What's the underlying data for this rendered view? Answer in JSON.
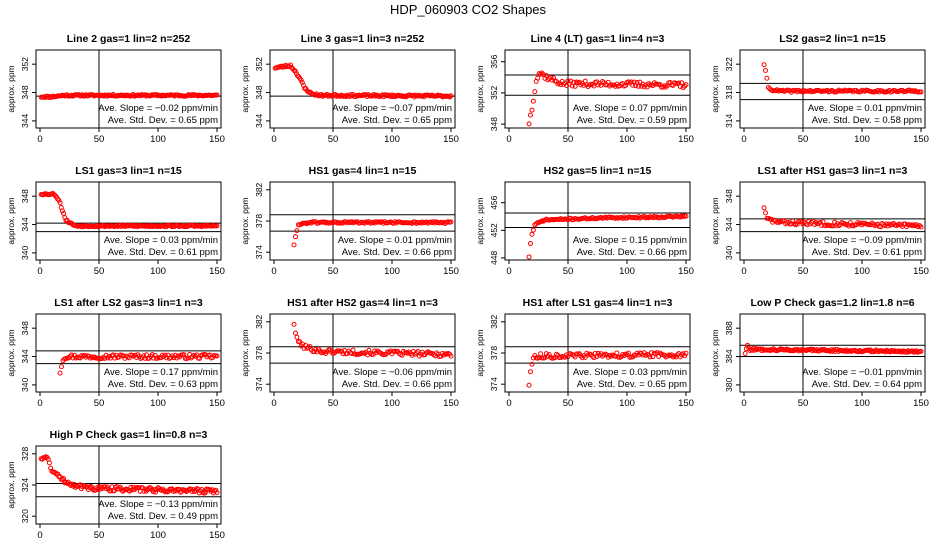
{
  "figure_title": "HDP_060903  CO2 Shapes",
  "colors": {
    "points": "#ff0000",
    "axes": "#000000",
    "background": "#ffffff"
  },
  "chart_data": [
    {
      "type": "scatter",
      "title": "Line 2 gas=1 lin=2 n=252",
      "ylabel": "approx. ppm",
      "xlim": [
        0,
        150
      ],
      "ylim": [
        343,
        354
      ],
      "x_ticks": [
        "0",
        "50",
        "100",
        "150"
      ],
      "y_ticks": [
        "344",
        "348",
        "352"
      ],
      "ref_lines_y": [
        347.5
      ],
      "vline_x": 50,
      "stats": [
        "Ave. Slope =  −0.02  ppm/min",
        "Ave. Std. Dev. =  0.65  ppm"
      ],
      "x_start": 1,
      "x_end": 150,
      "n_points": 150,
      "noise": 0.12,
      "seed": 11,
      "profile": [
        [
          1,
          347.4
        ],
        [
          10,
          347.4
        ],
        [
          20,
          347.6
        ],
        [
          150,
          347.6
        ]
      ]
    },
    {
      "type": "scatter",
      "title": "Line 3 gas=1 lin=3 n=252",
      "ylabel": "approx. ppm",
      "xlim": [
        0,
        150
      ],
      "ylim": [
        343,
        354
      ],
      "x_ticks": [
        "0",
        "50",
        "100",
        "150"
      ],
      "y_ticks": [
        "344",
        "348",
        "352"
      ],
      "ref_lines_y": [
        347.5
      ],
      "vline_x": 50,
      "stats": [
        "Ave. Slope =  −0.07  ppm/min",
        "Ave. Std. Dev. =  0.65  ppm"
      ],
      "x_start": 1,
      "x_end": 150,
      "n_points": 150,
      "noise": 0.15,
      "seed": 23,
      "profile": [
        [
          1,
          351.5
        ],
        [
          14,
          351.8
        ],
        [
          18,
          351
        ],
        [
          22,
          350
        ],
        [
          26,
          348.6
        ],
        [
          32,
          347.8
        ],
        [
          40,
          347.6
        ],
        [
          150,
          347.5
        ]
      ]
    },
    {
      "type": "scatter",
      "title": "Line 4 (LT) gas=1 lin=4 n=3",
      "ylabel": "approx. ppm",
      "xlim": [
        0,
        150
      ],
      "ylim": [
        347.5,
        357.5
      ],
      "x_ticks": [
        "0",
        "50",
        "100",
        "150"
      ],
      "y_ticks": [
        "348",
        "352",
        "356"
      ],
      "ref_lines_y": [
        354.3,
        351.7
      ],
      "vline_x": 50,
      "stats": [
        "Ave. Slope =  0.07  ppm/min",
        "Ave. Std. Dev. =  0.59  ppm"
      ],
      "x_start": 17,
      "x_end": 150,
      "n_points": 110,
      "noise": 0.35,
      "seed": 37,
      "profile": [
        [
          17,
          348.2
        ],
        [
          19,
          349.6
        ],
        [
          21,
          351.6
        ],
        [
          23,
          353.6
        ],
        [
          26,
          354.6
        ],
        [
          32,
          354
        ],
        [
          45,
          353.2
        ],
        [
          150,
          353
        ]
      ]
    },
    {
      "type": "scatter",
      "title": "LS2 gas=2 lin=1 n=15",
      "ylabel": "approx. ppm",
      "xlim": [
        0,
        150
      ],
      "ylim": [
        313,
        324
      ],
      "x_ticks": [
        "0",
        "50",
        "100",
        "150"
      ],
      "y_ticks": [
        "314",
        "318",
        "322"
      ],
      "ref_lines_y": [
        319.3,
        317
      ],
      "vline_x": 50,
      "stats": [
        "Ave. Slope =  0.01  ppm/min",
        "Ave. Std. Dev. =  0.58  ppm"
      ],
      "x_start": 17,
      "x_end": 150,
      "n_points": 110,
      "noise": 0.15,
      "seed": 41,
      "profile": [
        [
          17,
          322
        ],
        [
          19,
          320.3
        ],
        [
          21,
          318.5
        ],
        [
          30,
          318.2
        ],
        [
          150,
          318.2
        ]
      ]
    },
    {
      "type": "scatter",
      "title": "LS1 gas=3 lin=1 n=15",
      "ylabel": "approx. ppm",
      "xlim": [
        0,
        150
      ],
      "ylim": [
        339,
        350
      ],
      "x_ticks": [
        "0",
        "50",
        "100",
        "150"
      ],
      "y_ticks": [
        "340",
        "344",
        "348"
      ],
      "ref_lines_y": [
        344.2,
        343
      ],
      "vline_x": 50,
      "stats": [
        "Ave. Slope =  0.03  ppm/min",
        "Ave. Std. Dev. =  0.61  ppm"
      ],
      "x_start": 1,
      "x_end": 150,
      "n_points": 150,
      "noise": 0.12,
      "seed": 53,
      "profile": [
        [
          1,
          348.3
        ],
        [
          12,
          348.3
        ],
        [
          16,
          347.5
        ],
        [
          19,
          346
        ],
        [
          22,
          344.6
        ],
        [
          30,
          343.8
        ],
        [
          150,
          343.8
        ]
      ]
    },
    {
      "type": "scatter",
      "title": "HS1 gas=4 lin=1 n=15",
      "ylabel": "approx. ppm",
      "xlim": [
        0,
        150
      ],
      "ylim": [
        373,
        383
      ],
      "x_ticks": [
        "0",
        "50",
        "100",
        "150"
      ],
      "y_ticks": [
        "374",
        "378",
        "382"
      ],
      "ref_lines_y": [
        378.8,
        376.7
      ],
      "vline_x": 50,
      "stats": [
        "Ave. Slope =  0.01  ppm/min",
        "Ave. Std. Dev. =  0.66  ppm"
      ],
      "x_start": 17,
      "x_end": 150,
      "n_points": 110,
      "noise": 0.12,
      "seed": 61,
      "profile": [
        [
          17,
          375
        ],
        [
          19,
          376.5
        ],
        [
          21,
          377.6
        ],
        [
          30,
          377.8
        ],
        [
          150,
          377.8
        ]
      ]
    },
    {
      "type": "scatter",
      "title": "HS2 gas=5 lin=1 n=15",
      "ylabel": "approx. ppm",
      "xlim": [
        0,
        150
      ],
      "ylim": [
        447.7,
        459
      ],
      "x_ticks": [
        "0",
        "50",
        "100",
        "150"
      ],
      "y_ticks": [
        "448",
        "452",
        "456"
      ],
      "ref_lines_y": [
        454.5,
        452.4
      ],
      "vline_x": 50,
      "stats": [
        "Ave. Slope =  0.15  ppm/min",
        "Ave. Std. Dev. =  0.66  ppm"
      ],
      "x_start": 17,
      "x_end": 150,
      "n_points": 110,
      "noise": 0.12,
      "seed": 71,
      "profile": [
        [
          17,
          448.2
        ],
        [
          19,
          451.2
        ],
        [
          22,
          452.8
        ],
        [
          30,
          453.5
        ],
        [
          80,
          453.8
        ],
        [
          150,
          454
        ]
      ]
    },
    {
      "type": "scatter",
      "title": "LS1 after HS1 gas=3 lin=1 n=3",
      "ylabel": "approx. ppm",
      "xlim": [
        0,
        150
      ],
      "ylim": [
        339,
        350
      ],
      "x_ticks": [
        "0",
        "50",
        "100",
        "150"
      ],
      "y_ticks": [
        "340",
        "344",
        "348"
      ],
      "ref_lines_y": [
        344.8,
        343
      ],
      "vline_x": 50,
      "stats": [
        "Ave. Slope =  −0.09  ppm/min",
        "Ave. Std. Dev. =  0.61  ppm"
      ],
      "x_start": 17,
      "x_end": 150,
      "n_points": 110,
      "noise": 0.3,
      "seed": 83,
      "profile": [
        [
          17,
          346.5
        ],
        [
          19,
          344.8
        ],
        [
          30,
          344.3
        ],
        [
          150,
          343.8
        ]
      ]
    },
    {
      "type": "scatter",
      "title": "LS1 after LS2 gas=3 lin=1 n=3",
      "ylabel": "approx. ppm",
      "xlim": [
        0,
        150
      ],
      "ylim": [
        339,
        350
      ],
      "x_ticks": [
        "0",
        "50",
        "100",
        "150"
      ],
      "y_ticks": [
        "340",
        "344",
        "348"
      ],
      "ref_lines_y": [
        344.8,
        343
      ],
      "vline_x": 50,
      "stats": [
        "Ave. Slope =  0.17  ppm/min",
        "Ave. Std. Dev. =  0.63  ppm"
      ],
      "x_start": 17,
      "x_end": 150,
      "n_points": 110,
      "noise": 0.3,
      "seed": 97,
      "profile": [
        [
          17,
          341.8
        ],
        [
          19,
          343.5
        ],
        [
          22,
          344
        ],
        [
          150,
          344
        ]
      ]
    },
    {
      "type": "scatter",
      "title": "HS1 after HS2 gas=4 lin=1 n=3",
      "ylabel": "approx. ppm",
      "xlim": [
        0,
        150
      ],
      "ylim": [
        373,
        383
      ],
      "x_ticks": [
        "0",
        "50",
        "100",
        "150"
      ],
      "y_ticks": [
        "374",
        "378",
        "382"
      ],
      "ref_lines_y": [
        378.8,
        376.7
      ],
      "vline_x": 50,
      "stats": [
        "Ave. Slope =  −0.06  ppm/min",
        "Ave. Std. Dev. =  0.66  ppm"
      ],
      "x_start": 17,
      "x_end": 150,
      "n_points": 110,
      "noise": 0.3,
      "seed": 101,
      "profile": [
        [
          17,
          381.8
        ],
        [
          19,
          379.8
        ],
        [
          25,
          378.8
        ],
        [
          40,
          378.2
        ],
        [
          150,
          377.8
        ]
      ]
    },
    {
      "type": "scatter",
      "title": "HS1 after LS1 gas=4 lin=1 n=3",
      "ylabel": "approx. ppm",
      "xlim": [
        0,
        150
      ],
      "ylim": [
        373,
        383
      ],
      "x_ticks": [
        "0",
        "50",
        "100",
        "150"
      ],
      "y_ticks": [
        "374",
        "378",
        "382"
      ],
      "ref_lines_y": [
        378.8,
        376.7
      ],
      "vline_x": 50,
      "stats": [
        "Ave. Slope =  0.03  ppm/min",
        "Ave. Std. Dev. =  0.65  ppm"
      ],
      "x_start": 17,
      "x_end": 150,
      "n_points": 110,
      "noise": 0.3,
      "seed": 113,
      "profile": [
        [
          17,
          374
        ],
        [
          19,
          376.6
        ],
        [
          22,
          377.6
        ],
        [
          150,
          377.8
        ]
      ]
    },
    {
      "type": "scatter",
      "title": "Low P Check gas=1.2 lin=1.8 n=6",
      "ylabel": "approx. ppm",
      "xlim": [
        0,
        150
      ],
      "ylim": [
        379,
        390
      ],
      "x_ticks": [
        "0",
        "50",
        "100",
        "150"
      ],
      "y_ticks": [
        "380",
        "384",
        "388"
      ],
      "ref_lines_y": [
        385.6,
        384
      ],
      "vline_x": 50,
      "stats": [
        "Ave. Slope =  −0.01  ppm/min",
        "Ave. Std. Dev. =  0.64  ppm"
      ],
      "x_start": 1,
      "x_end": 150,
      "n_points": 150,
      "noise": 0.15,
      "seed": 127,
      "profile": [
        [
          1,
          384.5
        ],
        [
          3,
          385.5
        ],
        [
          5,
          385
        ],
        [
          10,
          385
        ],
        [
          150,
          384.7
        ]
      ]
    },
    {
      "type": "scatter",
      "title": "High P Check gas=1 lin=0.8 n=3",
      "ylabel": "approx. ppm",
      "xlim": [
        0,
        150
      ],
      "ylim": [
        319,
        329
      ],
      "x_ticks": [
        "0",
        "50",
        "100",
        "150"
      ],
      "y_ticks": [
        "320",
        "324",
        "328"
      ],
      "ref_lines_y": [
        324.2,
        322.5
      ],
      "vline_x": 50,
      "stats": [
        "Ave. Slope =  −0.13  ppm/min",
        "Ave. Std. Dev. =  0.49  ppm"
      ],
      "x_start": 1,
      "x_end": 150,
      "n_points": 150,
      "noise": 0.3,
      "seed": 131,
      "profile": [
        [
          1,
          327.5
        ],
        [
          6,
          327.5
        ],
        [
          10,
          326
        ],
        [
          16,
          325
        ],
        [
          25,
          324.2
        ],
        [
          40,
          323.6
        ],
        [
          150,
          323.2
        ]
      ]
    }
  ]
}
